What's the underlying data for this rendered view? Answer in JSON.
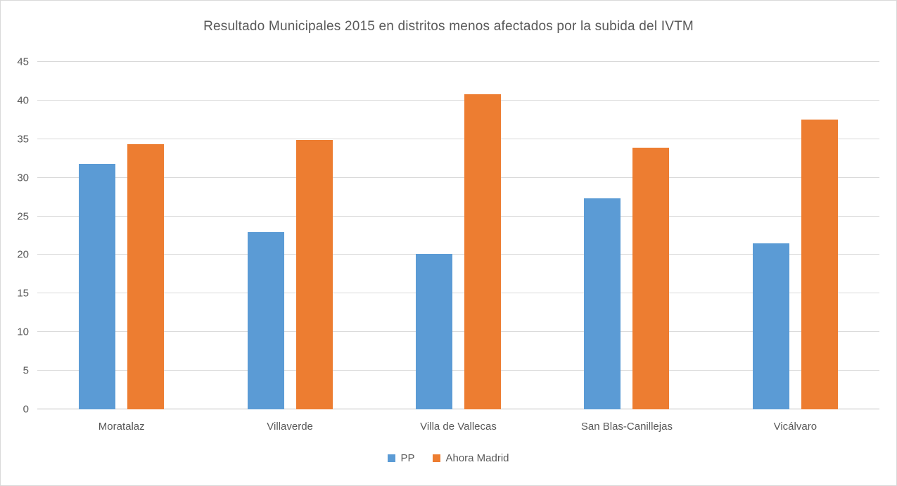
{
  "chart_data": {
    "type": "bar",
    "title": "Resultado Municipales 2015 en distritos menos afectados por la subida del IVTM",
    "categories": [
      "Moratalaz",
      "Villaverde",
      "Villa de Vallecas",
      "San Blas-Canillejas",
      "Vicálvaro"
    ],
    "series": [
      {
        "name": "PP",
        "color": "#5B9BD5",
        "values": [
          31.8,
          23.0,
          20.1,
          27.3,
          21.5
        ]
      },
      {
        "name": "Ahora Madrid",
        "color": "#ED7D31",
        "values": [
          34.3,
          34.9,
          40.8,
          33.9,
          37.5
        ]
      }
    ],
    "xlabel": "",
    "ylabel": "",
    "ylim": [
      0,
      45
    ],
    "yticks": [
      0,
      5,
      10,
      15,
      20,
      25,
      30,
      35,
      40,
      45
    ],
    "grid": true,
    "legend_position": "bottom"
  },
  "colors": {
    "background": "#FFFFFF",
    "border": "#D9D9D9",
    "gridline": "#D9D9D9",
    "axis_line": "#BFBFBF",
    "text": "#595959"
  }
}
